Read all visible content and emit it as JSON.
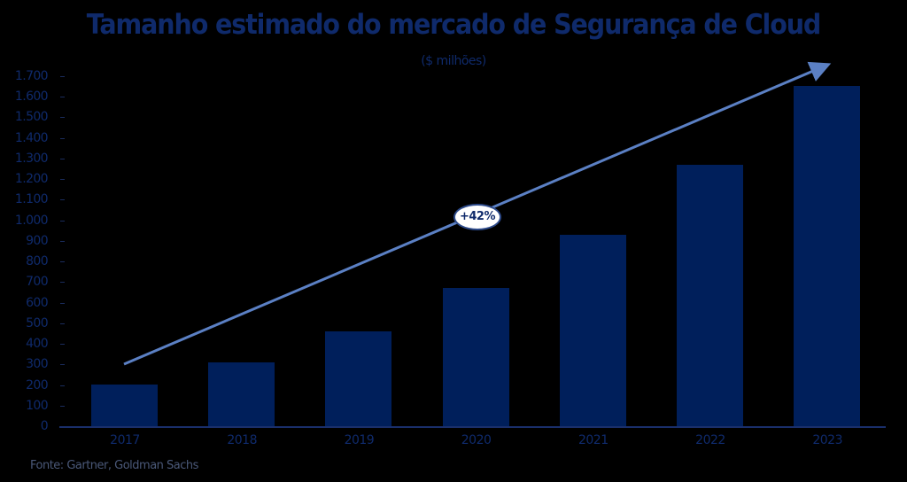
{
  "chart_data": {
    "type": "bar",
    "title": "Tamanho estimado do mercado de Segurança de Cloud",
    "subtitle": "($ milhões)",
    "xlabel": "",
    "ylabel": "",
    "categories": [
      "2017",
      "2018",
      "2019",
      "2020",
      "2021",
      "2022",
      "2023"
    ],
    "values": [
      202,
      310,
      460,
      670,
      930,
      1270,
      1653
    ],
    "ylim": [
      0,
      1700
    ],
    "yticks": [
      "0",
      "100",
      "200",
      "300",
      "400",
      "500",
      "600",
      "700",
      "800",
      "900",
      "1.000",
      "1.100",
      "1.200",
      "1.300",
      "1.400",
      "1.500",
      "1.600",
      "1.700"
    ],
    "grid": false,
    "legend": null,
    "annotations": [
      {
        "type": "trend-arrow",
        "label": "+42%",
        "from": "2017",
        "to": "2023"
      }
    ],
    "bar_color": "#001f5b",
    "trend_color": "#5b80c4",
    "source": "Fonte: Gartner, Goldman Sachs"
  },
  "labels": {
    "title": "Tamanho estimado do mercado de Segurança de Cloud",
    "subtitle": "($ milhões)",
    "cagr": "+42%",
    "source": "Fonte: Gartner, Goldman Sachs"
  }
}
